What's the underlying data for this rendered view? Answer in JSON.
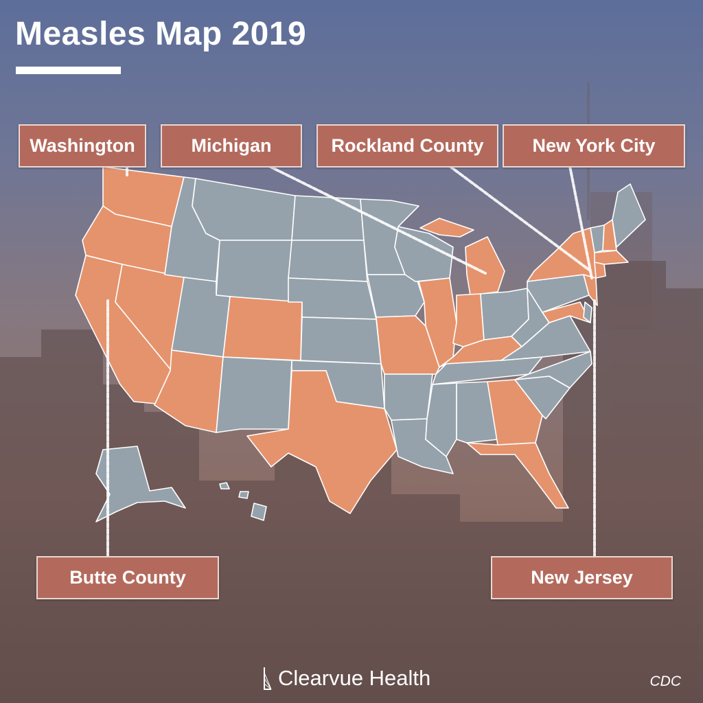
{
  "title": "Measles Map 2019",
  "callouts": {
    "washington": "Washington",
    "michigan": "Michigan",
    "rockland": "Rockland County",
    "nyc": "New York City",
    "butte": "Butte County",
    "new_jersey": "New Jersey"
  },
  "brand": "Clearvue Health",
  "source": "CDC",
  "colors": {
    "affected_state": "#e5936d",
    "unaffected_state": "#95a2ab",
    "callout_fill": "#b36a5d",
    "state_border": "#ffffff"
  },
  "map_data": {
    "affected_states": [
      "Washington",
      "Oregon",
      "California",
      "Nevada",
      "Arizona",
      "Colorado",
      "Texas",
      "Missouri",
      "Illinois",
      "Indiana",
      "Michigan",
      "Kentucky",
      "Georgia",
      "Florida",
      "New York",
      "New Jersey",
      "Pennsylvania",
      "Maryland",
      "Connecticut",
      "Massachusetts",
      "New Hampshire",
      "Tennessee"
    ],
    "unaffected_states": [
      "Alaska",
      "Hawaii",
      "Idaho",
      "Montana",
      "Wyoming",
      "Utah",
      "New Mexico",
      "North Dakota",
      "South Dakota",
      "Nebraska",
      "Kansas",
      "Oklahoma",
      "Minnesota",
      "Iowa",
      "Wisconsin",
      "Arkansas",
      "Louisiana",
      "Mississippi",
      "Alabama",
      "Ohio",
      "West Virginia",
      "Virginia",
      "North Carolina",
      "South Carolina",
      "Vermont",
      "Maine",
      "Delaware"
    ]
  }
}
